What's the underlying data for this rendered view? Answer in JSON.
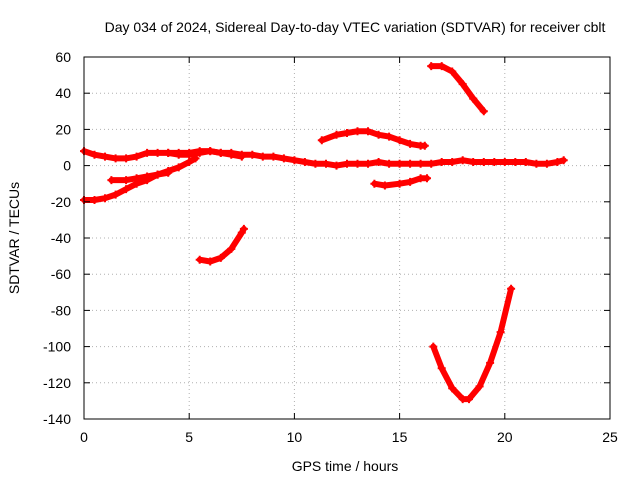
{
  "chart_data": {
    "type": "scatter",
    "title": "Day 034 of 2024, Sidereal Day-to-day VTEC variation (SDTVAR) for receiver cblt",
    "xlabel": "GPS time / hours",
    "ylabel": "SDTVAR / TECUs",
    "xlim": [
      0,
      25
    ],
    "ylim": [
      -140,
      60
    ],
    "xticks": [
      0,
      5,
      10,
      15,
      20,
      25
    ],
    "yticks": [
      -140,
      -120,
      -100,
      -80,
      -60,
      -40,
      -20,
      0,
      20,
      40,
      60
    ],
    "grid": true,
    "marker": "plus",
    "color": "#ff0000",
    "series": [
      {
        "points": [
          [
            0.0,
            8
          ],
          [
            0.5,
            6
          ],
          [
            1.0,
            5
          ],
          [
            1.5,
            4
          ],
          [
            2.0,
            4
          ],
          [
            2.5,
            5
          ],
          [
            3.0,
            7
          ],
          [
            3.5,
            7
          ],
          [
            4.0,
            7
          ],
          [
            4.5,
            7
          ],
          [
            5.0,
            7
          ],
          [
            5.5,
            8
          ],
          [
            6.0,
            8
          ],
          [
            6.5,
            7
          ],
          [
            7.0,
            7
          ],
          [
            7.5,
            6
          ],
          [
            8.0,
            6
          ],
          [
            8.5,
            5
          ],
          [
            9.0,
            5
          ],
          [
            9.5,
            4
          ],
          [
            10.0,
            3
          ],
          [
            10.5,
            2
          ],
          [
            11.0,
            1
          ],
          [
            11.5,
            1
          ],
          [
            12.0,
            0
          ],
          [
            12.5,
            1
          ],
          [
            13.0,
            1
          ],
          [
            13.5,
            1
          ],
          [
            14.0,
            2
          ],
          [
            14.5,
            1
          ],
          [
            15.0,
            1
          ],
          [
            15.5,
            1
          ],
          [
            16.0,
            1
          ],
          [
            16.5,
            1
          ],
          [
            17.0,
            2
          ],
          [
            17.5,
            2
          ],
          [
            18.0,
            3
          ],
          [
            18.5,
            2
          ],
          [
            19.0,
            2
          ],
          [
            19.5,
            2
          ],
          [
            20.0,
            2
          ],
          [
            20.5,
            2
          ],
          [
            21.0,
            2
          ],
          [
            21.5,
            1
          ],
          [
            22.0,
            1
          ],
          [
            22.5,
            2
          ],
          [
            22.8,
            3
          ]
        ]
      },
      {
        "points": [
          [
            0.0,
            -19
          ],
          [
            0.5,
            -19
          ],
          [
            1.0,
            -18
          ],
          [
            1.5,
            -16
          ],
          [
            2.0,
            -13
          ],
          [
            2.5,
            -10
          ],
          [
            3.0,
            -8
          ],
          [
            3.5,
            -5
          ],
          [
            4.0,
            -3
          ],
          [
            4.5,
            -1
          ],
          [
            5.0,
            2
          ],
          [
            5.3,
            4
          ]
        ]
      },
      {
        "points": [
          [
            1.3,
            -8
          ],
          [
            2.0,
            -8
          ],
          [
            2.5,
            -7
          ],
          [
            3.0,
            -6
          ],
          [
            3.5,
            -5
          ],
          [
            4.0,
            -4
          ]
        ]
      },
      {
        "points": [
          [
            4.0,
            7
          ],
          [
            4.5,
            6
          ],
          [
            5.0,
            6
          ],
          [
            5.5,
            7
          ],
          [
            6.0,
            8
          ],
          [
            6.5,
            7
          ],
          [
            7.0,
            6
          ],
          [
            7.5,
            5
          ]
        ]
      },
      {
        "points": [
          [
            5.5,
            -52
          ],
          [
            6.0,
            -53
          ],
          [
            6.5,
            -51
          ],
          [
            7.0,
            -46
          ],
          [
            7.5,
            -37
          ],
          [
            7.6,
            -35
          ]
        ]
      },
      {
        "points": [
          [
            11.3,
            14
          ],
          [
            12.0,
            17
          ],
          [
            12.5,
            18
          ],
          [
            13.0,
            19
          ],
          [
            13.5,
            19
          ],
          [
            14.0,
            17
          ],
          [
            14.5,
            16
          ],
          [
            15.0,
            14
          ],
          [
            15.5,
            12
          ],
          [
            16.0,
            11
          ],
          [
            16.2,
            11
          ]
        ]
      },
      {
        "points": [
          [
            13.8,
            -10
          ],
          [
            14.3,
            -11
          ],
          [
            15.0,
            -10
          ],
          [
            15.5,
            -9
          ],
          [
            16.0,
            -7
          ],
          [
            16.3,
            -7
          ]
        ]
      },
      {
        "points": [
          [
            16.5,
            55
          ],
          [
            17.0,
            55
          ],
          [
            17.5,
            52
          ],
          [
            18.0,
            45
          ],
          [
            18.5,
            37
          ],
          [
            19.0,
            30
          ]
        ]
      },
      {
        "points": [
          [
            16.6,
            -100
          ],
          [
            17.0,
            -112
          ],
          [
            17.5,
            -123
          ],
          [
            18.0,
            -129
          ],
          [
            18.3,
            -129
          ],
          [
            18.8,
            -122
          ],
          [
            19.3,
            -109
          ],
          [
            19.8,
            -92
          ],
          [
            20.3,
            -68
          ]
        ]
      }
    ]
  }
}
